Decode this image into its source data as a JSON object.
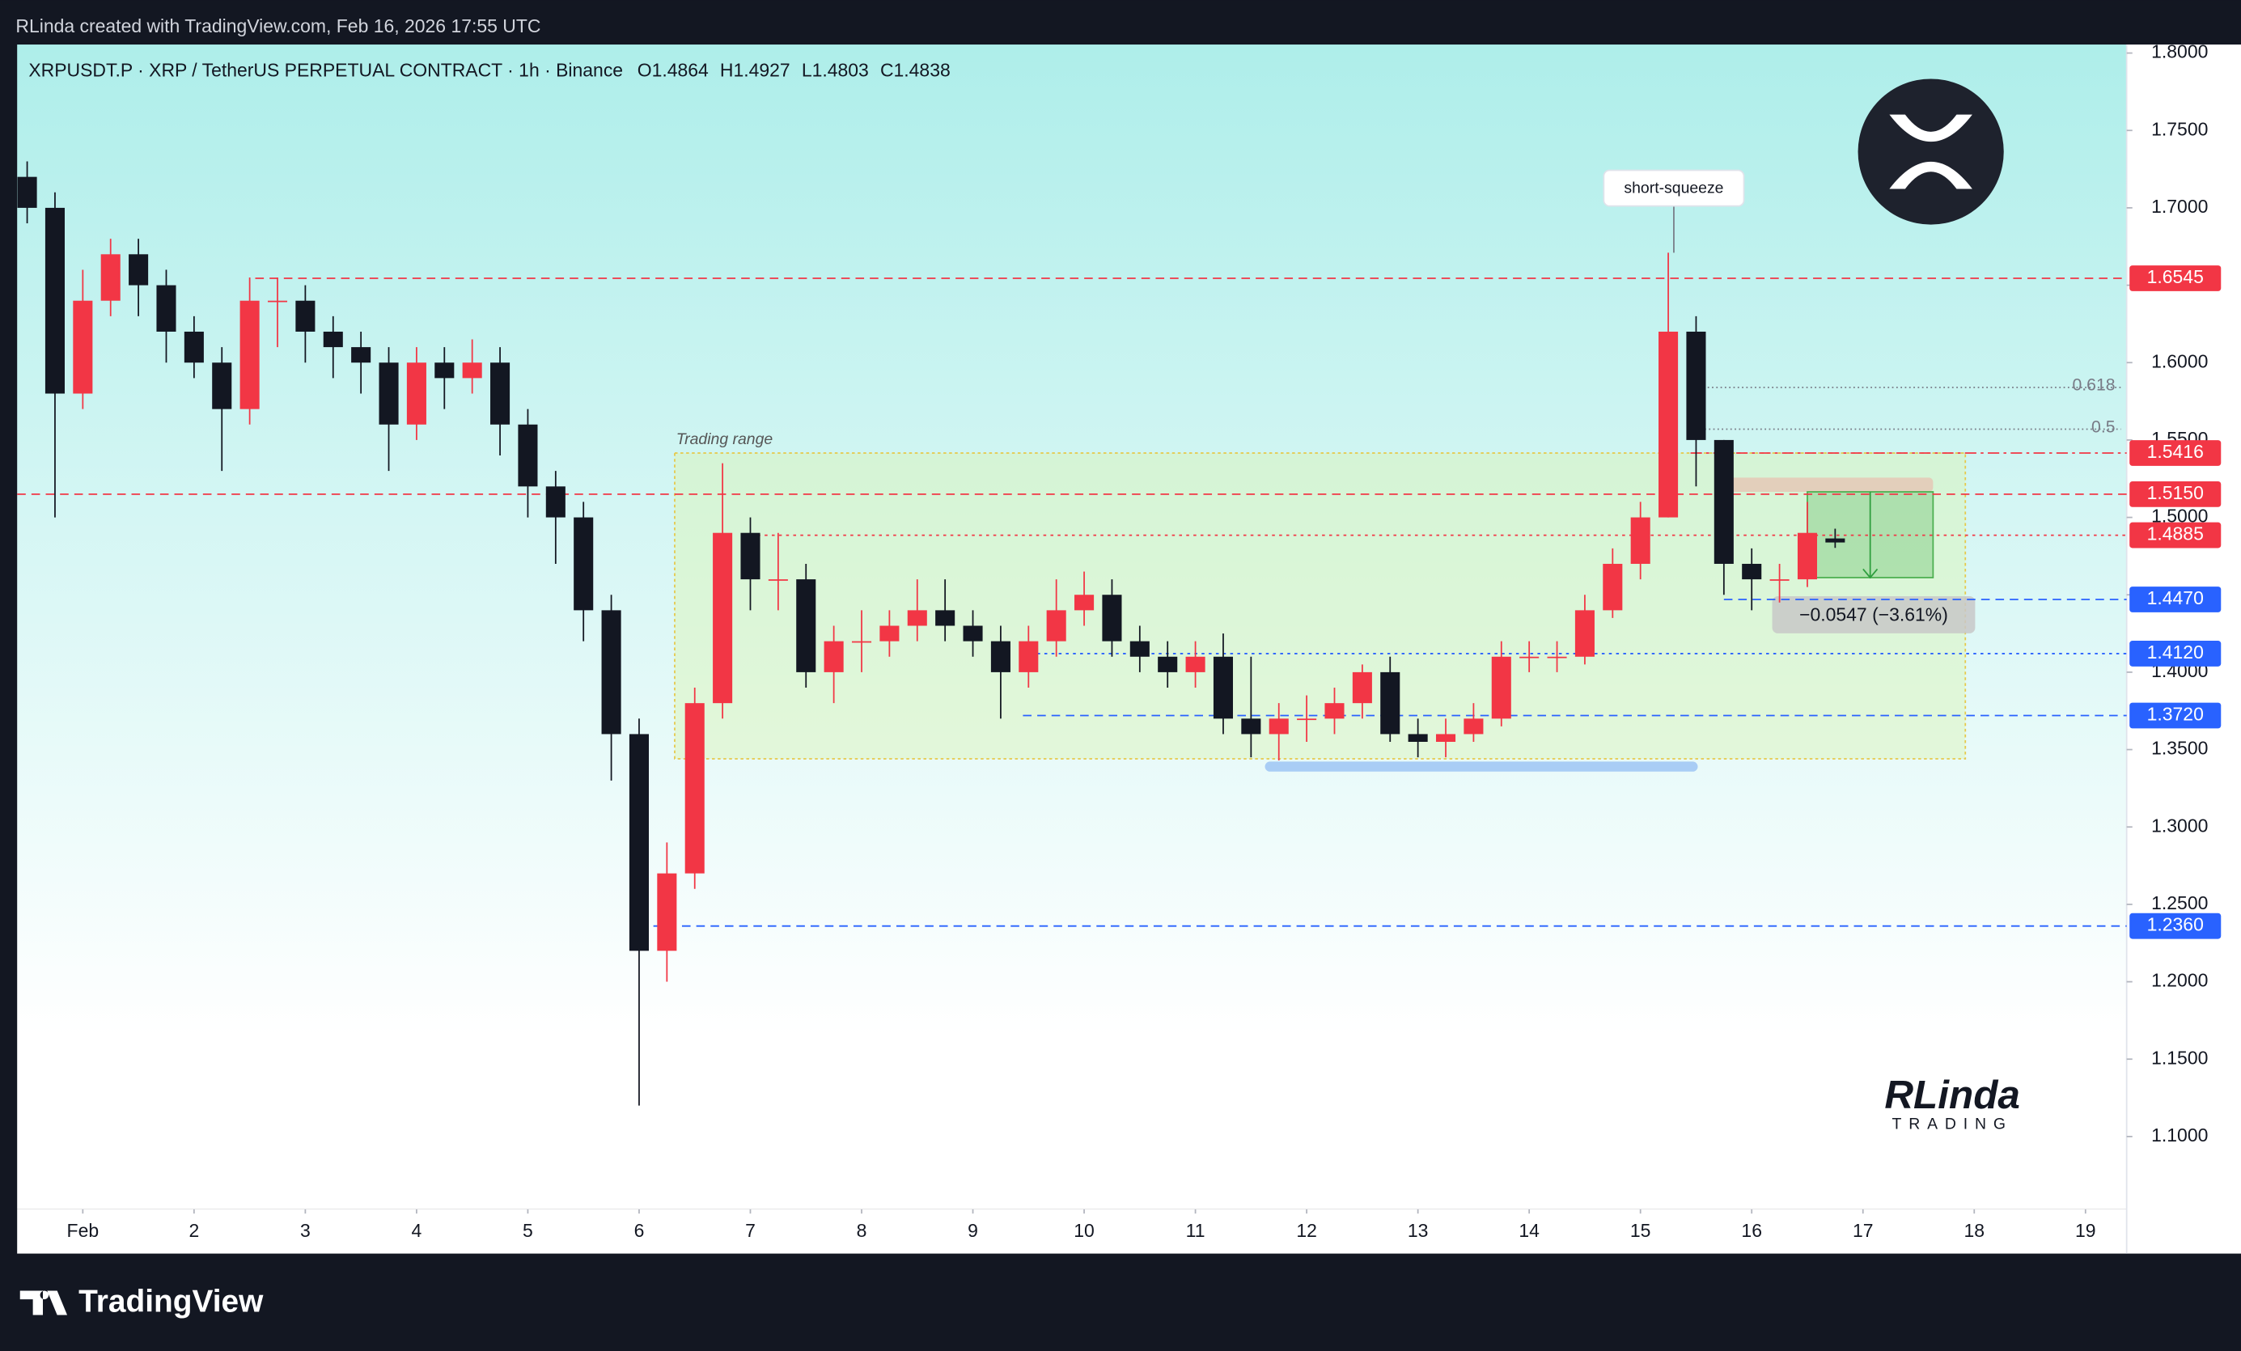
{
  "header": {
    "credit": "RLinda created with TradingView.com, Feb 16, 2026 17:55 UTC"
  },
  "chart_data": {
    "type": "candlestick",
    "title": "XRPUSDT.P · XRP / TetherUS PERPETUAL CONTRACT · 1h · Binance",
    "ohlc_legend": [
      "O1.4864",
      "H1.4927",
      "L1.4803",
      "C1.4838"
    ],
    "x": [
      0.5,
      0.75,
      1,
      1.25,
      1.5,
      1.75,
      2,
      2.25,
      2.5,
      2.75,
      3,
      3.25,
      3.5,
      3.75,
      4,
      4.25,
      4.5,
      4.75,
      5,
      5.25,
      5.5,
      5.75,
      6,
      6.25,
      6.5,
      6.75,
      7,
      7.25,
      7.5,
      7.75,
      8,
      8.25,
      8.5,
      8.75,
      9,
      9.25,
      9.5,
      9.75,
      10,
      10.25,
      10.5,
      10.75,
      11,
      11.25,
      11.5,
      11.75,
      12,
      12.25,
      12.5,
      12.75,
      13,
      13.25,
      13.5,
      13.75,
      14,
      14.25,
      14.5,
      14.75,
      15,
      15.25,
      15.5,
      15.75,
      16,
      16.25,
      16.5,
      16.75
    ],
    "open": [
      1.72,
      1.7,
      1.58,
      1.64,
      1.67,
      1.65,
      1.62,
      1.6,
      1.57,
      1.64,
      1.64,
      1.62,
      1.61,
      1.6,
      1.56,
      1.6,
      1.59,
      1.6,
      1.56,
      1.52,
      1.5,
      1.44,
      1.36,
      1.22,
      1.27,
      1.38,
      1.49,
      1.46,
      1.46,
      1.4,
      1.42,
      1.42,
      1.43,
      1.44,
      1.43,
      1.42,
      1.4,
      1.42,
      1.44,
      1.45,
      1.42,
      1.41,
      1.4,
      1.41,
      1.37,
      1.36,
      1.37,
      1.37,
      1.38,
      1.4,
      1.36,
      1.355,
      1.36,
      1.37,
      1.41,
      1.41,
      1.41,
      1.44,
      1.47,
      1.5,
      1.62,
      1.55,
      1.47,
      1.46,
      1.46,
      1.4864
    ],
    "high": [
      1.73,
      1.71,
      1.66,
      1.68,
      1.68,
      1.66,
      1.63,
      1.61,
      1.655,
      1.655,
      1.65,
      1.63,
      1.62,
      1.61,
      1.61,
      1.61,
      1.615,
      1.61,
      1.57,
      1.53,
      1.51,
      1.45,
      1.37,
      1.29,
      1.39,
      1.535,
      1.5,
      1.49,
      1.47,
      1.43,
      1.44,
      1.44,
      1.46,
      1.46,
      1.44,
      1.43,
      1.43,
      1.46,
      1.465,
      1.46,
      1.43,
      1.42,
      1.42,
      1.425,
      1.41,
      1.38,
      1.385,
      1.39,
      1.405,
      1.41,
      1.37,
      1.37,
      1.38,
      1.42,
      1.42,
      1.42,
      1.45,
      1.48,
      1.51,
      1.671,
      1.63,
      1.55,
      1.48,
      1.47,
      1.51,
      1.4927
    ],
    "low": [
      1.69,
      1.5,
      1.57,
      1.63,
      1.63,
      1.6,
      1.59,
      1.53,
      1.56,
      1.61,
      1.6,
      1.59,
      1.58,
      1.53,
      1.55,
      1.57,
      1.58,
      1.54,
      1.5,
      1.47,
      1.42,
      1.33,
      1.12,
      1.2,
      1.26,
      1.37,
      1.44,
      1.44,
      1.39,
      1.38,
      1.4,
      1.41,
      1.42,
      1.42,
      1.41,
      1.37,
      1.39,
      1.41,
      1.43,
      1.41,
      1.4,
      1.39,
      1.39,
      1.36,
      1.345,
      1.343,
      1.355,
      1.36,
      1.37,
      1.355,
      1.345,
      1.345,
      1.355,
      1.365,
      1.4,
      1.4,
      1.405,
      1.435,
      1.46,
      1.5,
      1.52,
      1.45,
      1.44,
      1.445,
      1.455,
      1.4803
    ],
    "close": [
      1.7,
      1.58,
      1.64,
      1.67,
      1.65,
      1.62,
      1.6,
      1.57,
      1.64,
      1.64,
      1.62,
      1.61,
      1.6,
      1.56,
      1.6,
      1.59,
      1.6,
      1.56,
      1.52,
      1.5,
      1.44,
      1.36,
      1.22,
      1.27,
      1.38,
      1.49,
      1.46,
      1.46,
      1.4,
      1.42,
      1.42,
      1.43,
      1.44,
      1.43,
      1.42,
      1.4,
      1.42,
      1.44,
      1.45,
      1.42,
      1.41,
      1.4,
      1.41,
      1.37,
      1.36,
      1.37,
      1.37,
      1.38,
      1.4,
      1.36,
      1.355,
      1.36,
      1.37,
      1.41,
      1.41,
      1.41,
      1.44,
      1.47,
      1.5,
      1.62,
      1.55,
      1.47,
      1.46,
      1.46,
      1.49,
      1.4838
    ],
    "up_color": "#f23645",
    "down_color": "#131722",
    "xlim": [
      0.41,
      19.37
    ],
    "xticks": [
      {
        "value": 1,
        "label": "Feb"
      },
      2,
      3,
      4,
      5,
      6,
      7,
      8,
      9,
      10,
      11,
      12,
      13,
      14,
      15,
      16,
      17,
      18,
      19
    ],
    "ylim": [
      1.053,
      1.8055
    ],
    "yticks": [
      {
        "value": 1.1,
        "label": "1.1000"
      },
      {
        "value": 1.15,
        "label": "1.1500"
      },
      {
        "value": 1.2,
        "label": "1.2000"
      },
      {
        "value": 1.25,
        "label": "1.2500"
      },
      {
        "value": 1.3,
        "label": "1.3000"
      },
      {
        "value": 1.35,
        "label": "1.3500"
      },
      {
        "value": 1.4,
        "label": "1.4000"
      },
      {
        "value": 1.45,
        "label": "1.4500"
      },
      {
        "value": 1.5,
        "label": "1.5000"
      },
      {
        "value": 1.55,
        "label": "1.5500"
      },
      {
        "value": 1.6,
        "label": "1.6000"
      },
      {
        "value": 1.65,
        "label": "1.6500"
      },
      {
        "value": 1.7,
        "label": "1.7000"
      },
      {
        "value": 1.75,
        "label": "1.7500"
      },
      {
        "value": 1.8,
        "label": "1.8000"
      }
    ],
    "levels": [
      {
        "value": 1.6545,
        "label": "1.6545",
        "color": "#f23645",
        "from": 2.55,
        "style": "dashed"
      },
      {
        "value": 1.5416,
        "label": "1.5416",
        "color": "#f23645",
        "from": 15.45,
        "style": "dashdot"
      },
      {
        "value": 1.515,
        "label": "1.5150",
        "color": "#f23645",
        "from": 0.41,
        "style": "dashed"
      },
      {
        "value": 1.4885,
        "label": "1.4885",
        "color": "#f23645",
        "from": 7.0,
        "style": "dotted"
      },
      {
        "value": 1.447,
        "label": "1.4470",
        "color": "#2962ff",
        "from": 15.75,
        "style": "dashed"
      },
      {
        "value": 1.412,
        "label": "1.4120",
        "color": "#2962ff",
        "from": 9.45,
        "style": "dotted"
      },
      {
        "value": 1.372,
        "label": "1.3720",
        "color": "#2962ff",
        "from": 9.45,
        "style": "dashed"
      },
      {
        "value": 1.236,
        "label": "1.2360",
        "color": "#2962ff",
        "from": 6.0,
        "style": "dashed"
      }
    ],
    "fib": [
      {
        "value": 1.584,
        "label": "0.618",
        "from": 15.45
      },
      {
        "value": 1.557,
        "label": "0.5",
        "from": 15.5
      }
    ],
    "range": {
      "label": "Trading range",
      "x": [
        6.32,
        17.92
      ],
      "y": [
        1.344,
        1.5416
      ]
    },
    "support_band": {
      "x": [
        11.67,
        15.47
      ],
      "value": 1.339
    },
    "annotation": {
      "text": "short-squeeze",
      "x": 15.3,
      "value": 1.671
    },
    "projection": {
      "x": [
        16.5,
        17.63
      ],
      "y": [
        1.4611,
        1.5165
      ],
      "zone_from": 15.73,
      "label": "−0.0547 (−3.61%)"
    }
  },
  "footer": {
    "logo": "TradingView"
  },
  "watermark": {
    "name": "RLinda",
    "sub": "TRADING"
  }
}
